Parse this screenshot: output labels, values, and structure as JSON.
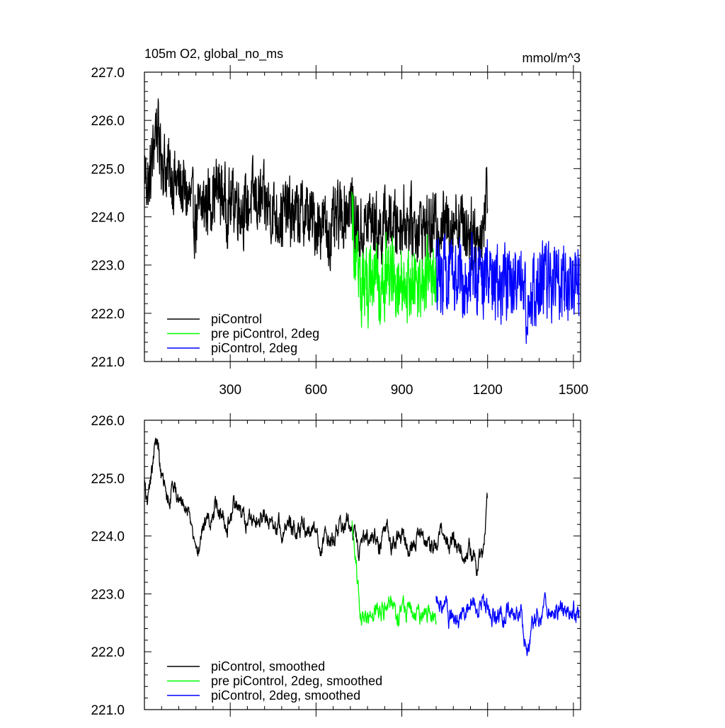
{
  "header": {
    "title": "105m O2, global_no_ms",
    "units": "mmol/m^3"
  },
  "chart_data": [
    {
      "type": "line",
      "panel": "top",
      "xlim": [
        0,
        1525
      ],
      "ylim": [
        221.0,
        227.0
      ],
      "x_ticks": [
        300,
        600,
        900,
        1200,
        1500
      ],
      "x_tick_labels": [
        "300",
        "600",
        "900",
        "1200",
        "1500"
      ],
      "y_ticks": [
        221.0,
        222.0,
        223.0,
        224.0,
        225.0,
        226.0,
        227.0
      ],
      "y_tick_labels": [
        "221.0",
        "222.0",
        "223.0",
        "224.0",
        "225.0",
        "226.0",
        "227.0"
      ],
      "legend_position": "bottom-left",
      "series": [
        {
          "name": "piControl",
          "color": "#000000",
          "x_range": [
            1,
            1200
          ],
          "points": [
            [
              1,
              225.0
            ],
            [
              15,
              224.6
            ],
            [
              30,
              225.3
            ],
            [
              40,
              226.0
            ],
            [
              55,
              225.4
            ],
            [
              75,
              225.0
            ],
            [
              100,
              224.8
            ],
            [
              130,
              224.6
            ],
            [
              160,
              224.3
            ],
            [
              180,
              223.9
            ],
            [
              200,
              224.2
            ],
            [
              230,
              224.4
            ],
            [
              260,
              224.6
            ],
            [
              290,
              224.2
            ],
            [
              320,
              224.4
            ],
            [
              350,
              224.1
            ],
            [
              380,
              224.4
            ],
            [
              410,
              224.3
            ],
            [
              440,
              224.2
            ],
            [
              470,
              224.0
            ],
            [
              500,
              224.1
            ],
            [
              530,
              224.0
            ],
            [
              560,
              224.1
            ],
            [
              590,
              223.9
            ],
            [
              620,
              223.9
            ],
            [
              650,
              223.6
            ],
            [
              680,
              224.0
            ],
            [
              700,
              224.1
            ],
            [
              720,
              224.3
            ],
            [
              740,
              223.8
            ],
            [
              760,
              223.6
            ],
            [
              790,
              224.0
            ],
            [
              820,
              223.7
            ],
            [
              850,
              223.9
            ],
            [
              880,
              223.8
            ],
            [
              910,
              224.0
            ],
            [
              940,
              223.8
            ],
            [
              970,
              223.8
            ],
            [
              1000,
              223.7
            ],
            [
              1030,
              223.9
            ],
            [
              1060,
              223.8
            ],
            [
              1090,
              224.0
            ],
            [
              1120,
              223.8
            ],
            [
              1150,
              223.7
            ],
            [
              1170,
              223.5
            ],
            [
              1185,
              223.8
            ],
            [
              1200,
              224.7
            ]
          ],
          "noise_amplitude": 0.85
        },
        {
          "name": "pre piControl, 2deg",
          "color": "#00ff00",
          "x_range": [
            725,
            1020
          ],
          "points": [
            [
              725,
              224.2
            ],
            [
              735,
              223.4
            ],
            [
              745,
              222.9
            ],
            [
              760,
              222.5
            ],
            [
              780,
              222.6
            ],
            [
              800,
              222.7
            ],
            [
              830,
              222.6
            ],
            [
              860,
              222.8
            ],
            [
              890,
              222.6
            ],
            [
              920,
              222.7
            ],
            [
              950,
              222.6
            ],
            [
              980,
              222.7
            ],
            [
              1000,
              222.6
            ],
            [
              1020,
              222.6
            ]
          ],
          "noise_amplitude": 0.95
        },
        {
          "name": "piControl, 2deg",
          "color": "#0000ff",
          "x_range": [
            1020,
            1520
          ],
          "points": [
            [
              1020,
              222.8
            ],
            [
              1050,
              222.8
            ],
            [
              1080,
              222.6
            ],
            [
              1110,
              222.7
            ],
            [
              1140,
              222.9
            ],
            [
              1170,
              222.8
            ],
            [
              1200,
              222.7
            ],
            [
              1230,
              222.6
            ],
            [
              1260,
              222.7
            ],
            [
              1290,
              222.6
            ],
            [
              1320,
              222.5
            ],
            [
              1340,
              222.2
            ],
            [
              1360,
              222.5
            ],
            [
              1390,
              222.7
            ],
            [
              1420,
              222.6
            ],
            [
              1450,
              222.7
            ],
            [
              1480,
              222.6
            ],
            [
              1500,
              222.6
            ],
            [
              1520,
              222.7
            ]
          ],
          "noise_amplitude": 0.95
        }
      ]
    },
    {
      "type": "line",
      "panel": "bottom",
      "xlim": [
        0,
        1525
      ],
      "ylim": [
        221.0,
        226.0
      ],
      "x_ticks": [
        300,
        600,
        900,
        1200,
        1500
      ],
      "y_ticks": [
        221.0,
        222.0,
        223.0,
        224.0,
        225.0,
        226.0
      ],
      "y_tick_labels": [
        "221.0",
        "222.0",
        "223.0",
        "224.0",
        "225.0",
        "226.0"
      ],
      "legend_position": "bottom-left",
      "series": [
        {
          "name": "piControl, smoothed",
          "color": "#000000",
          "x_range": [
            1,
            1200
          ],
          "points": [
            [
              1,
              224.9
            ],
            [
              10,
              224.5
            ],
            [
              20,
              224.8
            ],
            [
              30,
              225.3
            ],
            [
              40,
              225.8
            ],
            [
              50,
              225.4
            ],
            [
              60,
              224.9
            ],
            [
              80,
              224.6
            ],
            [
              100,
              224.9
            ],
            [
              130,
              224.6
            ],
            [
              160,
              224.4
            ],
            [
              180,
              223.7
            ],
            [
              200,
              224.1
            ],
            [
              230,
              224.3
            ],
            [
              260,
              224.6
            ],
            [
              290,
              224.2
            ],
            [
              320,
              224.5
            ],
            [
              350,
              224.2
            ],
            [
              380,
              224.4
            ],
            [
              410,
              224.3
            ],
            [
              440,
              224.3
            ],
            [
              470,
              224.1
            ],
            [
              500,
              224.2
            ],
            [
              530,
              224.1
            ],
            [
              560,
              224.2
            ],
            [
              590,
              224.1
            ],
            [
              620,
              224.0
            ],
            [
              650,
              223.8
            ],
            [
              680,
              224.1
            ],
            [
              710,
              224.2
            ],
            [
              730,
              224.0
            ],
            [
              760,
              223.7
            ],
            [
              790,
              224.0
            ],
            [
              820,
              223.8
            ],
            [
              850,
              224.0
            ],
            [
              880,
              223.9
            ],
            [
              910,
              224.0
            ],
            [
              940,
              223.8
            ],
            [
              970,
              223.9
            ],
            [
              1000,
              223.8
            ],
            [
              1030,
              224.0
            ],
            [
              1060,
              223.9
            ],
            [
              1090,
              224.0
            ],
            [
              1120,
              223.8
            ],
            [
              1150,
              223.7
            ],
            [
              1170,
              223.5
            ],
            [
              1185,
              223.8
            ],
            [
              1200,
              224.7
            ]
          ],
          "noise_amplitude": 0.45
        },
        {
          "name": "pre piControl, 2deg, smoothed",
          "color": "#00ff00",
          "x_range": [
            725,
            1020
          ],
          "points": [
            [
              725,
              224.2
            ],
            [
              735,
              223.7
            ],
            [
              745,
              223.2
            ],
            [
              755,
              222.7
            ],
            [
              770,
              222.5
            ],
            [
              790,
              222.6
            ],
            [
              820,
              222.7
            ],
            [
              850,
              222.8
            ],
            [
              880,
              222.6
            ],
            [
              910,
              222.6
            ],
            [
              940,
              222.7
            ],
            [
              970,
              222.6
            ],
            [
              1000,
              222.6
            ],
            [
              1020,
              222.6
            ]
          ],
          "noise_amplitude": 0.45
        },
        {
          "name": "piControl, 2deg, smoothed",
          "color": "#0000ff",
          "x_range": [
            1020,
            1520
          ],
          "points": [
            [
              1020,
              222.9
            ],
            [
              1050,
              222.8
            ],
            [
              1080,
              222.5
            ],
            [
              1110,
              222.6
            ],
            [
              1140,
              222.9
            ],
            [
              1170,
              222.8
            ],
            [
              1200,
              222.8
            ],
            [
              1230,
              222.6
            ],
            [
              1260,
              222.7
            ],
            [
              1290,
              222.6
            ],
            [
              1320,
              222.6
            ],
            [
              1340,
              222.1
            ],
            [
              1360,
              222.5
            ],
            [
              1390,
              222.7
            ],
            [
              1420,
              222.6
            ],
            [
              1450,
              222.7
            ],
            [
              1480,
              222.6
            ],
            [
              1500,
              222.6
            ],
            [
              1520,
              222.7
            ]
          ],
          "noise_amplitude": 0.45
        }
      ]
    }
  ]
}
